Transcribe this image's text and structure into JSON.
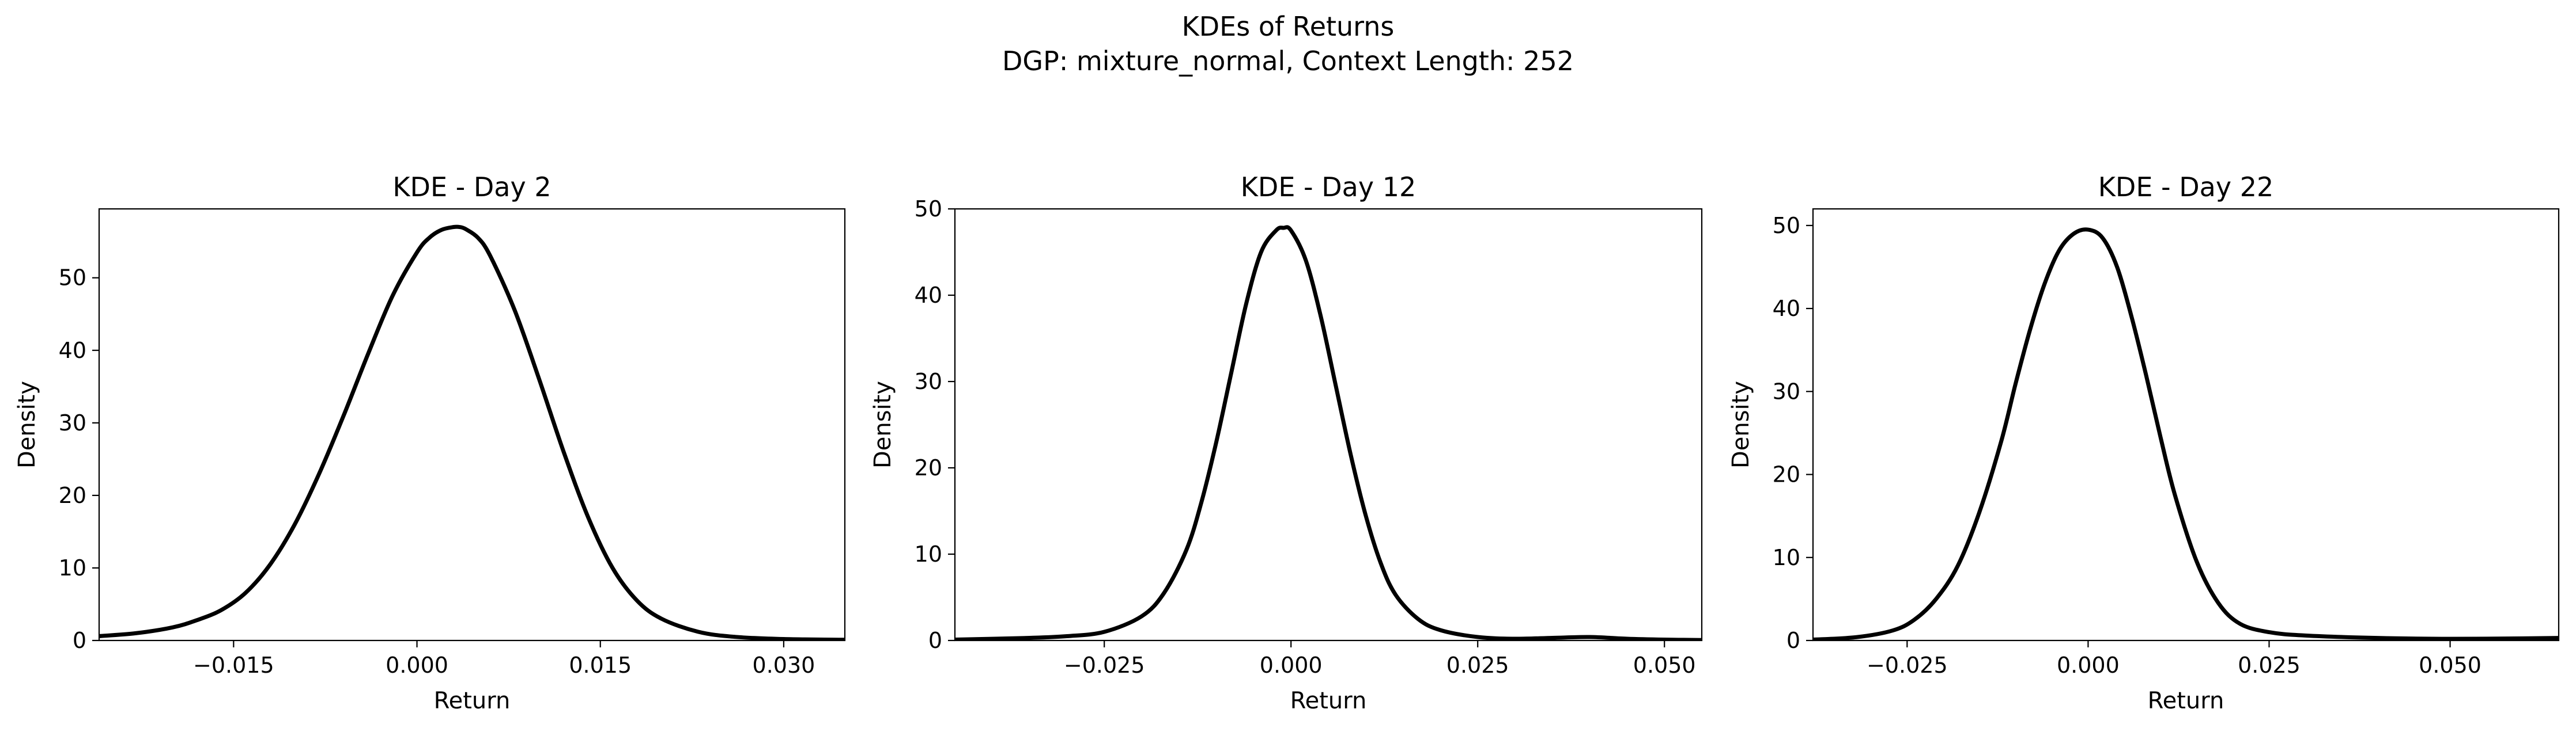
{
  "figure": {
    "title": "KDEs of Returns",
    "subtitle": "DGP: mixture_normal, Context Length: 252"
  },
  "chart_data": [
    {
      "type": "line",
      "title": "KDE - Day 2",
      "xlabel": "Return",
      "ylabel": "Density",
      "xlim": [
        -0.026,
        0.035
      ],
      "ylim": [
        0,
        59.5
      ],
      "xticks": [
        -0.015,
        0.0,
        0.015,
        0.03
      ],
      "xtick_labels": [
        "−0.015",
        "0.000",
        "0.015",
        "0.030"
      ],
      "yticks": [
        0,
        10,
        20,
        30,
        40,
        50
      ],
      "ytick_labels": [
        "0",
        "10",
        "20",
        "30",
        "40",
        "50"
      ],
      "grid": false,
      "color": "#000000",
      "series": [
        {
          "x": [
            -0.026,
            -0.023,
            -0.02,
            -0.018,
            -0.016,
            -0.014,
            -0.012,
            -0.01,
            -0.008,
            -0.006,
            -0.004,
            -0.002,
            0.0,
            0.001,
            0.002,
            0.003,
            0.0035,
            0.004,
            0.005,
            0.006,
            0.008,
            0.01,
            0.012,
            0.014,
            0.016,
            0.018,
            0.02,
            0.023,
            0.026,
            0.03,
            0.035
          ],
          "y": [
            0.6,
            1.0,
            1.8,
            2.8,
            4.2,
            6.6,
            10.5,
            16.0,
            23.0,
            31.0,
            39.5,
            47.5,
            53.5,
            55.5,
            56.6,
            57.0,
            57.0,
            56.7,
            55.5,
            53.0,
            45.5,
            36.0,
            26.0,
            17.0,
            10.0,
            5.5,
            3.0,
            1.2,
            0.5,
            0.2,
            0.1
          ]
        }
      ]
    },
    {
      "type": "line",
      "title": "KDE - Day 12",
      "xlabel": "Return",
      "ylabel": "Density",
      "xlim": [
        -0.045,
        0.055
      ],
      "ylim": [
        0,
        50
      ],
      "xticks": [
        -0.025,
        0.0,
        0.025,
        0.05
      ],
      "xtick_labels": [
        "−0.025",
        "0.000",
        "0.025",
        "0.050"
      ],
      "yticks": [
        0,
        10,
        20,
        30,
        40,
        50
      ],
      "ytick_labels": [
        "0",
        "10",
        "20",
        "30",
        "40",
        "50"
      ],
      "grid": false,
      "color": "#000000",
      "series": [
        {
          "x": [
            -0.045,
            -0.035,
            -0.03,
            -0.025,
            -0.02,
            -0.017,
            -0.014,
            -0.012,
            -0.01,
            -0.008,
            -0.006,
            -0.004,
            -0.002,
            -0.001,
            0.0,
            0.002,
            0.004,
            0.006,
            0.008,
            0.01,
            0.012,
            0.014,
            0.017,
            0.02,
            0.025,
            0.03,
            0.035,
            0.04,
            0.045,
            0.05,
            0.055
          ],
          "y": [
            0.1,
            0.3,
            0.5,
            1.0,
            2.8,
            5.5,
            10.5,
            16.0,
            23.0,
            31.0,
            39.0,
            45.0,
            47.5,
            47.8,
            47.5,
            44.0,
            37.5,
            29.5,
            21.5,
            14.5,
            9.0,
            5.3,
            2.5,
            1.2,
            0.4,
            0.2,
            0.3,
            0.4,
            0.2,
            0.1,
            0.05
          ]
        }
      ]
    },
    {
      "type": "line",
      "title": "KDE - Day 22",
      "xlabel": "Return",
      "ylabel": "Density",
      "xlim": [
        -0.038,
        0.065
      ],
      "ylim": [
        0,
        52
      ],
      "xticks": [
        -0.025,
        0.0,
        0.025,
        0.05
      ],
      "xtick_labels": [
        "−0.025",
        "0.000",
        "0.025",
        "0.050"
      ],
      "yticks": [
        0,
        10,
        20,
        30,
        40,
        50
      ],
      "ytick_labels": [
        "0",
        "10",
        "20",
        "30",
        "40",
        "50"
      ],
      "grid": false,
      "color": "#000000",
      "series": [
        {
          "x": [
            -0.038,
            -0.032,
            -0.027,
            -0.024,
            -0.021,
            -0.018,
            -0.015,
            -0.012,
            -0.01,
            -0.008,
            -0.006,
            -0.004,
            -0.002,
            0.0,
            0.002,
            0.004,
            0.006,
            0.008,
            0.01,
            0.012,
            0.015,
            0.018,
            0.021,
            0.025,
            0.03,
            0.04,
            0.05,
            0.06,
            0.065
          ],
          "y": [
            0.1,
            0.4,
            1.2,
            2.5,
            5.0,
            9.0,
            15.5,
            24.0,
            31.0,
            37.5,
            43.0,
            47.0,
            49.0,
            49.5,
            48.5,
            45.0,
            39.0,
            32.0,
            24.5,
            17.5,
            9.5,
            4.5,
            2.0,
            1.0,
            0.6,
            0.3,
            0.2,
            0.25,
            0.3
          ]
        }
      ]
    }
  ]
}
